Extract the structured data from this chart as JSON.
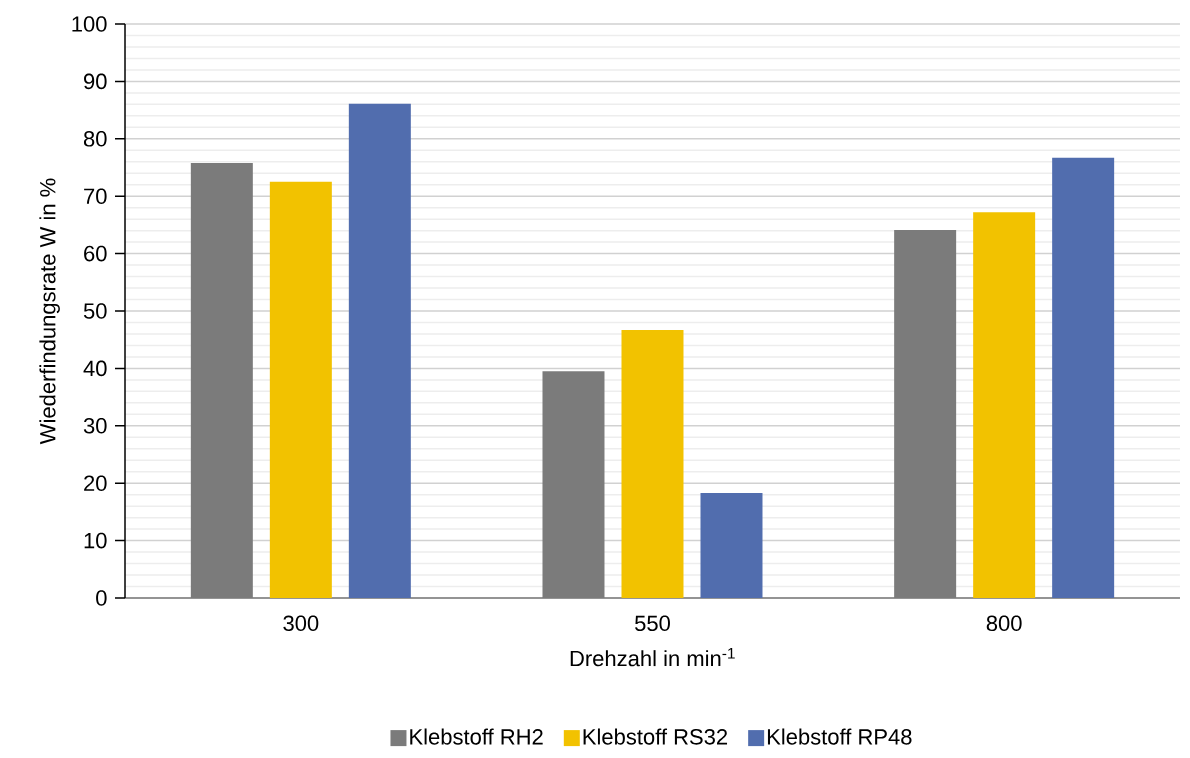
{
  "chart_data": {
    "type": "bar",
    "xlabel": "Drehzahl in min$^{-1}$",
    "ylabel": "Wiederfindungsrate W in %",
    "categories": [
      "300",
      "550",
      "800"
    ],
    "series": [
      {
        "name": "Klebstoff RH2",
        "color": "#7b7b7b",
        "values": [
          75.8,
          39.5,
          64.1
        ]
      },
      {
        "name": "Klebstoff RS32",
        "color": "#f2c200",
        "values": [
          72.5,
          46.7,
          67.2
        ]
      },
      {
        "name": "Klebstoff RP48",
        "color": "#516dae",
        "values": [
          86.1,
          18.3,
          76.7
        ]
      }
    ],
    "ylim": [
      0,
      100
    ],
    "yticks": [
      0,
      10,
      20,
      30,
      40,
      50,
      60,
      70,
      80,
      90,
      100
    ],
    "grid": "y",
    "legend": "bottom"
  }
}
